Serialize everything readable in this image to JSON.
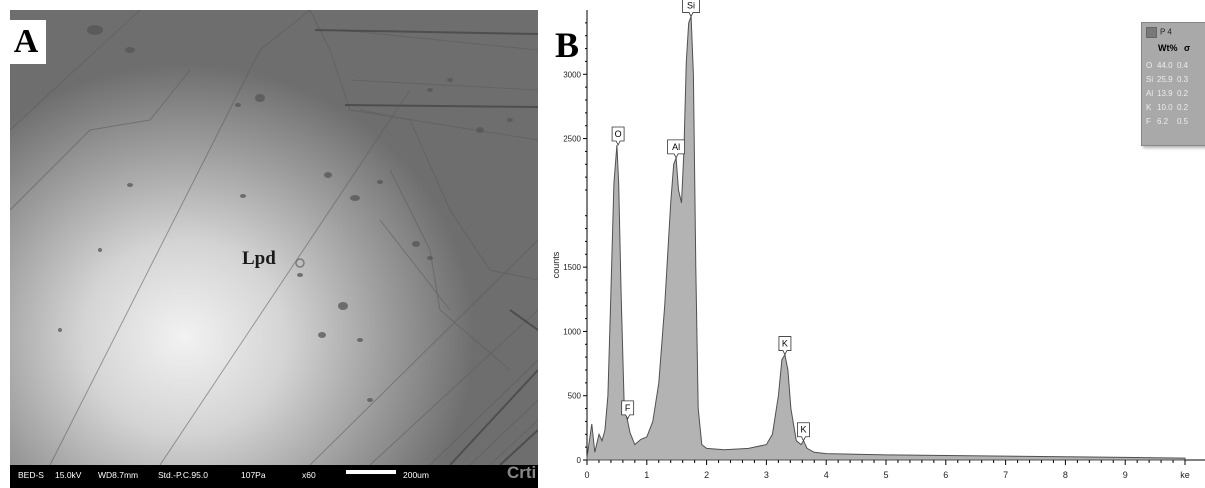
{
  "panel_a": {
    "letter": "A",
    "label": "Lpd",
    "info_bar": {
      "mode": "BED-S",
      "voltage": "15.0kV",
      "wd": "WD8.7mm",
      "std": "Std.-P.C.95.0",
      "pressure": "107Pa",
      "mag": "x60",
      "scale": "200um",
      "logo": "Crti"
    }
  },
  "panel_b": {
    "letter": "B",
    "legend": {
      "series": "P 4",
      "header_wt": "Wt%",
      "header_sigma": "σ",
      "rows": [
        {
          "el": "O",
          "wt": "44.0",
          "sigma": "0.4"
        },
        {
          "el": "Si",
          "wt": "25.9",
          "sigma": "0.3"
        },
        {
          "el": "Al",
          "wt": "13.9",
          "sigma": "0.2"
        },
        {
          "el": "K",
          "wt": "10.0",
          "sigma": "0.2"
        },
        {
          "el": "F",
          "wt": "6.2",
          "sigma": "0.5"
        }
      ]
    }
  },
  "chart_data": {
    "type": "area",
    "title": "",
    "xlabel": "ke",
    "ylabel": "counts",
    "xlim": [
      0,
      10
    ],
    "ylim": [
      0,
      3500
    ],
    "x_ticks": [
      "0",
      "1",
      "2",
      "3",
      "4",
      "5",
      "6",
      "7",
      "8",
      "9",
      "ke"
    ],
    "y_ticks": [
      "0",
      "500",
      "1000",
      "1500",
      "2500",
      "3000"
    ],
    "fill_color": "#b3b3b3",
    "line_color": "#505050",
    "series": [
      {
        "x": [
          0.0,
          0.08,
          0.13,
          0.2,
          0.25,
          0.3,
          0.35,
          0.4,
          0.45,
          0.5,
          0.53,
          0.57,
          0.62,
          0.67,
          0.72,
          0.8,
          0.9,
          1.0,
          1.1,
          1.2,
          1.3,
          1.4,
          1.45,
          1.49,
          1.53,
          1.58,
          1.62,
          1.66,
          1.7,
          1.74,
          1.78,
          1.82,
          1.86,
          1.92,
          2.0,
          2.3,
          2.7,
          3.0,
          3.1,
          3.2,
          3.26,
          3.31,
          3.36,
          3.41,
          3.5,
          3.58,
          3.62,
          3.68,
          3.8,
          4.0,
          4.5,
          5.0,
          6.0,
          7.0,
          8.0,
          9.0,
          10.0
        ],
        "y": [
          20,
          280,
          60,
          200,
          150,
          230,
          500,
          1300,
          2150,
          2450,
          2150,
          1300,
          450,
          320,
          210,
          120,
          160,
          180,
          300,
          600,
          1200,
          2000,
          2300,
          2350,
          2100,
          2000,
          2400,
          3100,
          3400,
          3450,
          3000,
          1500,
          400,
          120,
          90,
          80,
          90,
          120,
          200,
          500,
          780,
          820,
          700,
          400,
          150,
          120,
          150,
          90,
          60,
          50,
          45,
          40,
          35,
          30,
          25,
          20,
          15
        ]
      }
    ],
    "peak_labels": [
      {
        "text": "O",
        "x": 0.52,
        "y": 2450
      },
      {
        "text": "F",
        "x": 0.68,
        "y": 320
      },
      {
        "text": "Al",
        "x": 1.49,
        "y": 2350
      },
      {
        "text": "Si",
        "x": 1.74,
        "y": 3450
      },
      {
        "text": "K",
        "x": 3.31,
        "y": 820
      },
      {
        "text": "K",
        "x": 3.62,
        "y": 150
      }
    ]
  }
}
